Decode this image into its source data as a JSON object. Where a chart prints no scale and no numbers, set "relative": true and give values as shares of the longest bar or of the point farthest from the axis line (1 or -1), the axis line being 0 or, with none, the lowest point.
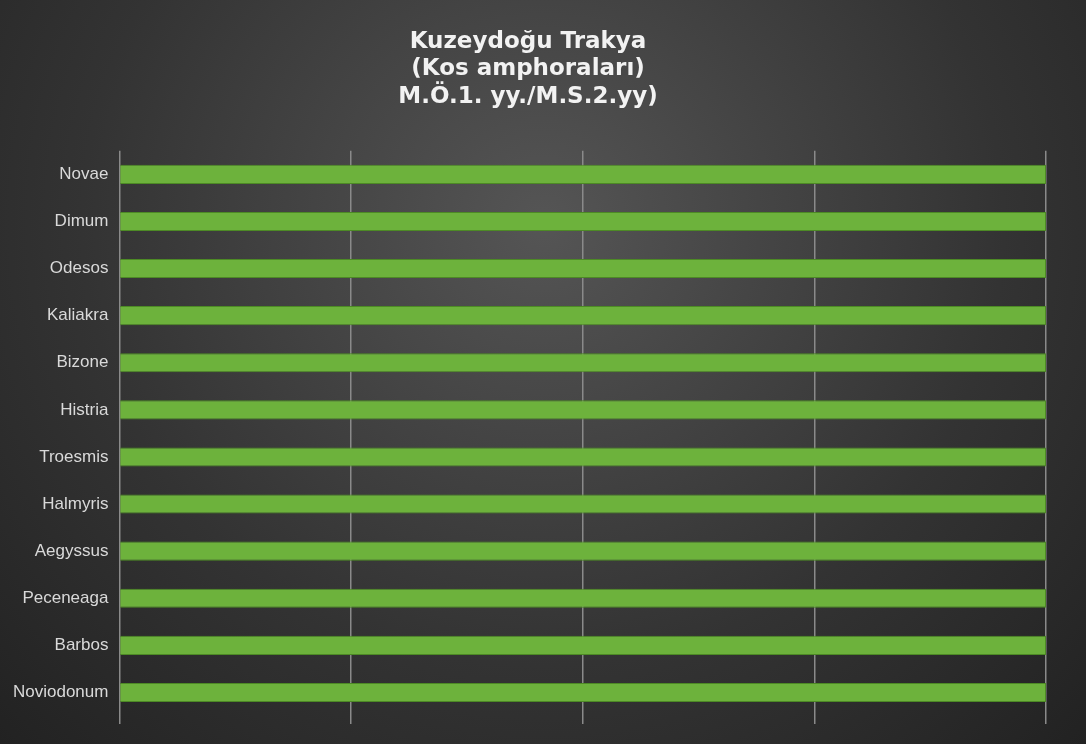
{
  "chart_data": {
    "type": "bar",
    "orientation": "horizontal",
    "title": "Kuzeydoğu Trakya\n(Kos amphoraları)\nM.Ö.1. yy./M.S.2.yy)",
    "categories": [
      "Novae",
      "Dimum",
      "Odesos",
      "Kaliakra",
      "Bizone",
      "Histria",
      "Troesmis",
      "Halmyris",
      "Aegyssus",
      "Peceneaga",
      "Barbos",
      "Noviodonum"
    ],
    "values": [
      1,
      1,
      1,
      1,
      1,
      1,
      1,
      1,
      1,
      1,
      1,
      1
    ],
    "color": "#6db23c",
    "relative": true,
    "grid": "x"
  }
}
